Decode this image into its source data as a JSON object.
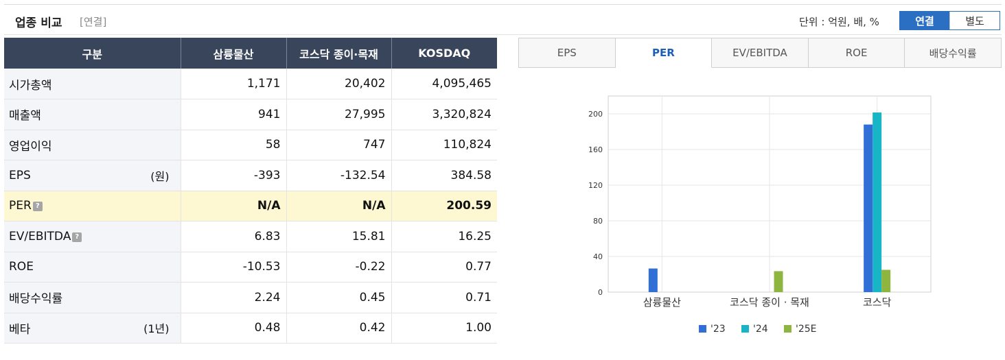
{
  "header": {
    "title": "업종 비교",
    "subtitle": "[연결]",
    "unit": "단위 : 억원, 배, %",
    "toggle": [
      "연결",
      "별도"
    ]
  },
  "table": {
    "columns": [
      "구분",
      "삼륭물산",
      "코스닥 종이·목재",
      "KOSDAQ"
    ],
    "rows": [
      {
        "label": "시가총액",
        "suffix": "",
        "help": false,
        "highlight": false,
        "values": [
          "1,171",
          "20,402",
          "4,095,465"
        ],
        "negative": [
          false,
          false,
          false
        ]
      },
      {
        "label": "매출액",
        "suffix": "",
        "help": false,
        "highlight": false,
        "values": [
          "941",
          "27,995",
          "3,320,824"
        ],
        "negative": [
          false,
          false,
          false
        ]
      },
      {
        "label": "영업이익",
        "suffix": "",
        "help": false,
        "highlight": false,
        "values": [
          "58",
          "747",
          "110,824"
        ],
        "negative": [
          false,
          false,
          false
        ]
      },
      {
        "label": "EPS",
        "suffix": "(원)",
        "help": false,
        "highlight": false,
        "values": [
          "-393",
          "-132.54",
          "384.58"
        ],
        "negative": [
          true,
          true,
          false
        ]
      },
      {
        "label": "PER",
        "suffix": "",
        "help": true,
        "highlight": true,
        "values": [
          "N/A",
          "N/A",
          "200.59"
        ],
        "negative": [
          false,
          false,
          false
        ]
      },
      {
        "label": "EV/EBITDA",
        "suffix": "",
        "help": true,
        "highlight": false,
        "values": [
          "6.83",
          "15.81",
          "16.25"
        ],
        "negative": [
          false,
          false,
          false
        ]
      },
      {
        "label": "ROE",
        "suffix": "",
        "help": false,
        "highlight": false,
        "values": [
          "-10.53",
          "-0.22",
          "0.77"
        ],
        "negative": [
          true,
          true,
          false
        ]
      },
      {
        "label": "배당수익률",
        "suffix": "",
        "help": false,
        "highlight": false,
        "values": [
          "2.24",
          "0.45",
          "0.71"
        ],
        "negative": [
          false,
          false,
          false
        ]
      },
      {
        "label": "베타",
        "suffix": "(1년)",
        "help": false,
        "highlight": false,
        "values": [
          "0.48",
          "0.42",
          "1.00"
        ],
        "negative": [
          false,
          false,
          false
        ]
      }
    ],
    "help_glyph": "?"
  },
  "tabs": [
    "EPS",
    "PER",
    "EV/EBITDA",
    "ROE",
    "배당수익률"
  ],
  "active_tab": "PER",
  "colors": {
    "header_bg": "#39455a",
    "accent": "#2b6fc2",
    "negative": "#e0161c",
    "highlight_row": "#fdf7d2"
  },
  "chart_data": {
    "type": "bar",
    "categories": [
      "삼륭물산",
      "코스닥 종이 · 목재",
      "코스닥"
    ],
    "series": [
      {
        "name": "'23",
        "color": "#2f6fd6",
        "values": [
          26.5,
          null,
          188
        ]
      },
      {
        "name": "'24",
        "color": "#17b5c6",
        "values": [
          null,
          null,
          201.5
        ]
      },
      {
        "name": "'25E",
        "color": "#8db53f",
        "values": [
          null,
          23.5,
          25
        ]
      }
    ],
    "ylim": [
      0,
      220
    ],
    "yticks": [
      0,
      40,
      80,
      120,
      160,
      200
    ],
    "grid": true,
    "legend": "bottom"
  }
}
